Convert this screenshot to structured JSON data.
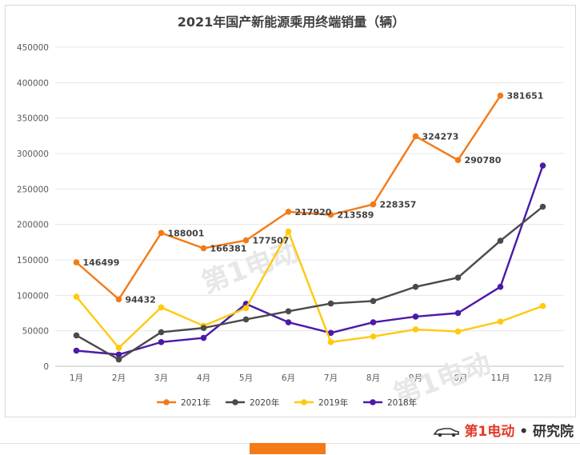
{
  "chart_data": {
    "type": "line",
    "title": "2021年国产新能源乘用终端销量（辆）",
    "categories": [
      "1月",
      "2月",
      "3月",
      "4月",
      "5月",
      "6月",
      "7月",
      "8月",
      "9月",
      "10月",
      "11月",
      "12月"
    ],
    "ylim": [
      0,
      450000
    ],
    "yticks": [
      "0",
      "50000",
      "100000",
      "150000",
      "200000",
      "250000",
      "300000",
      "350000",
      "400000",
      "450000"
    ],
    "grid": true,
    "legend_position": "bottom",
    "series": [
      {
        "name": "2021年",
        "color": "#f47a16",
        "values": [
          146499,
          94432,
          188001,
          166381,
          177507,
          217920,
          213589,
          228357,
          324273,
          290780,
          381651,
          null
        ],
        "labels": [
          "146499",
          "94432",
          "188001",
          "166381",
          "177507",
          "217920",
          "213589",
          "228357",
          "324273",
          "290780",
          "381651",
          ""
        ]
      },
      {
        "name": "2020年",
        "color": "#4a4a4a",
        "values": [
          43500,
          9500,
          48000,
          54000,
          66000,
          77500,
          88500,
          92000,
          112000,
          125000,
          177000,
          225000
        ]
      },
      {
        "name": "2019年",
        "color": "#ffc90e",
        "values": [
          98000,
          26000,
          83000,
          57000,
          82000,
          190000,
          34000,
          42000,
          52000,
          49000,
          63000,
          85000
        ]
      },
      {
        "name": "2018年",
        "color": "#4b1aa8",
        "values": [
          22000,
          16500,
          34000,
          40000,
          88000,
          62000,
          47000,
          62000,
          70000,
          75000,
          112000,
          283000
        ]
      }
    ]
  },
  "watermark": {
    "text": "第1电动"
  },
  "footer": {
    "brand_prefix": "第1电动",
    "brand_suffix": "• 研究院"
  }
}
